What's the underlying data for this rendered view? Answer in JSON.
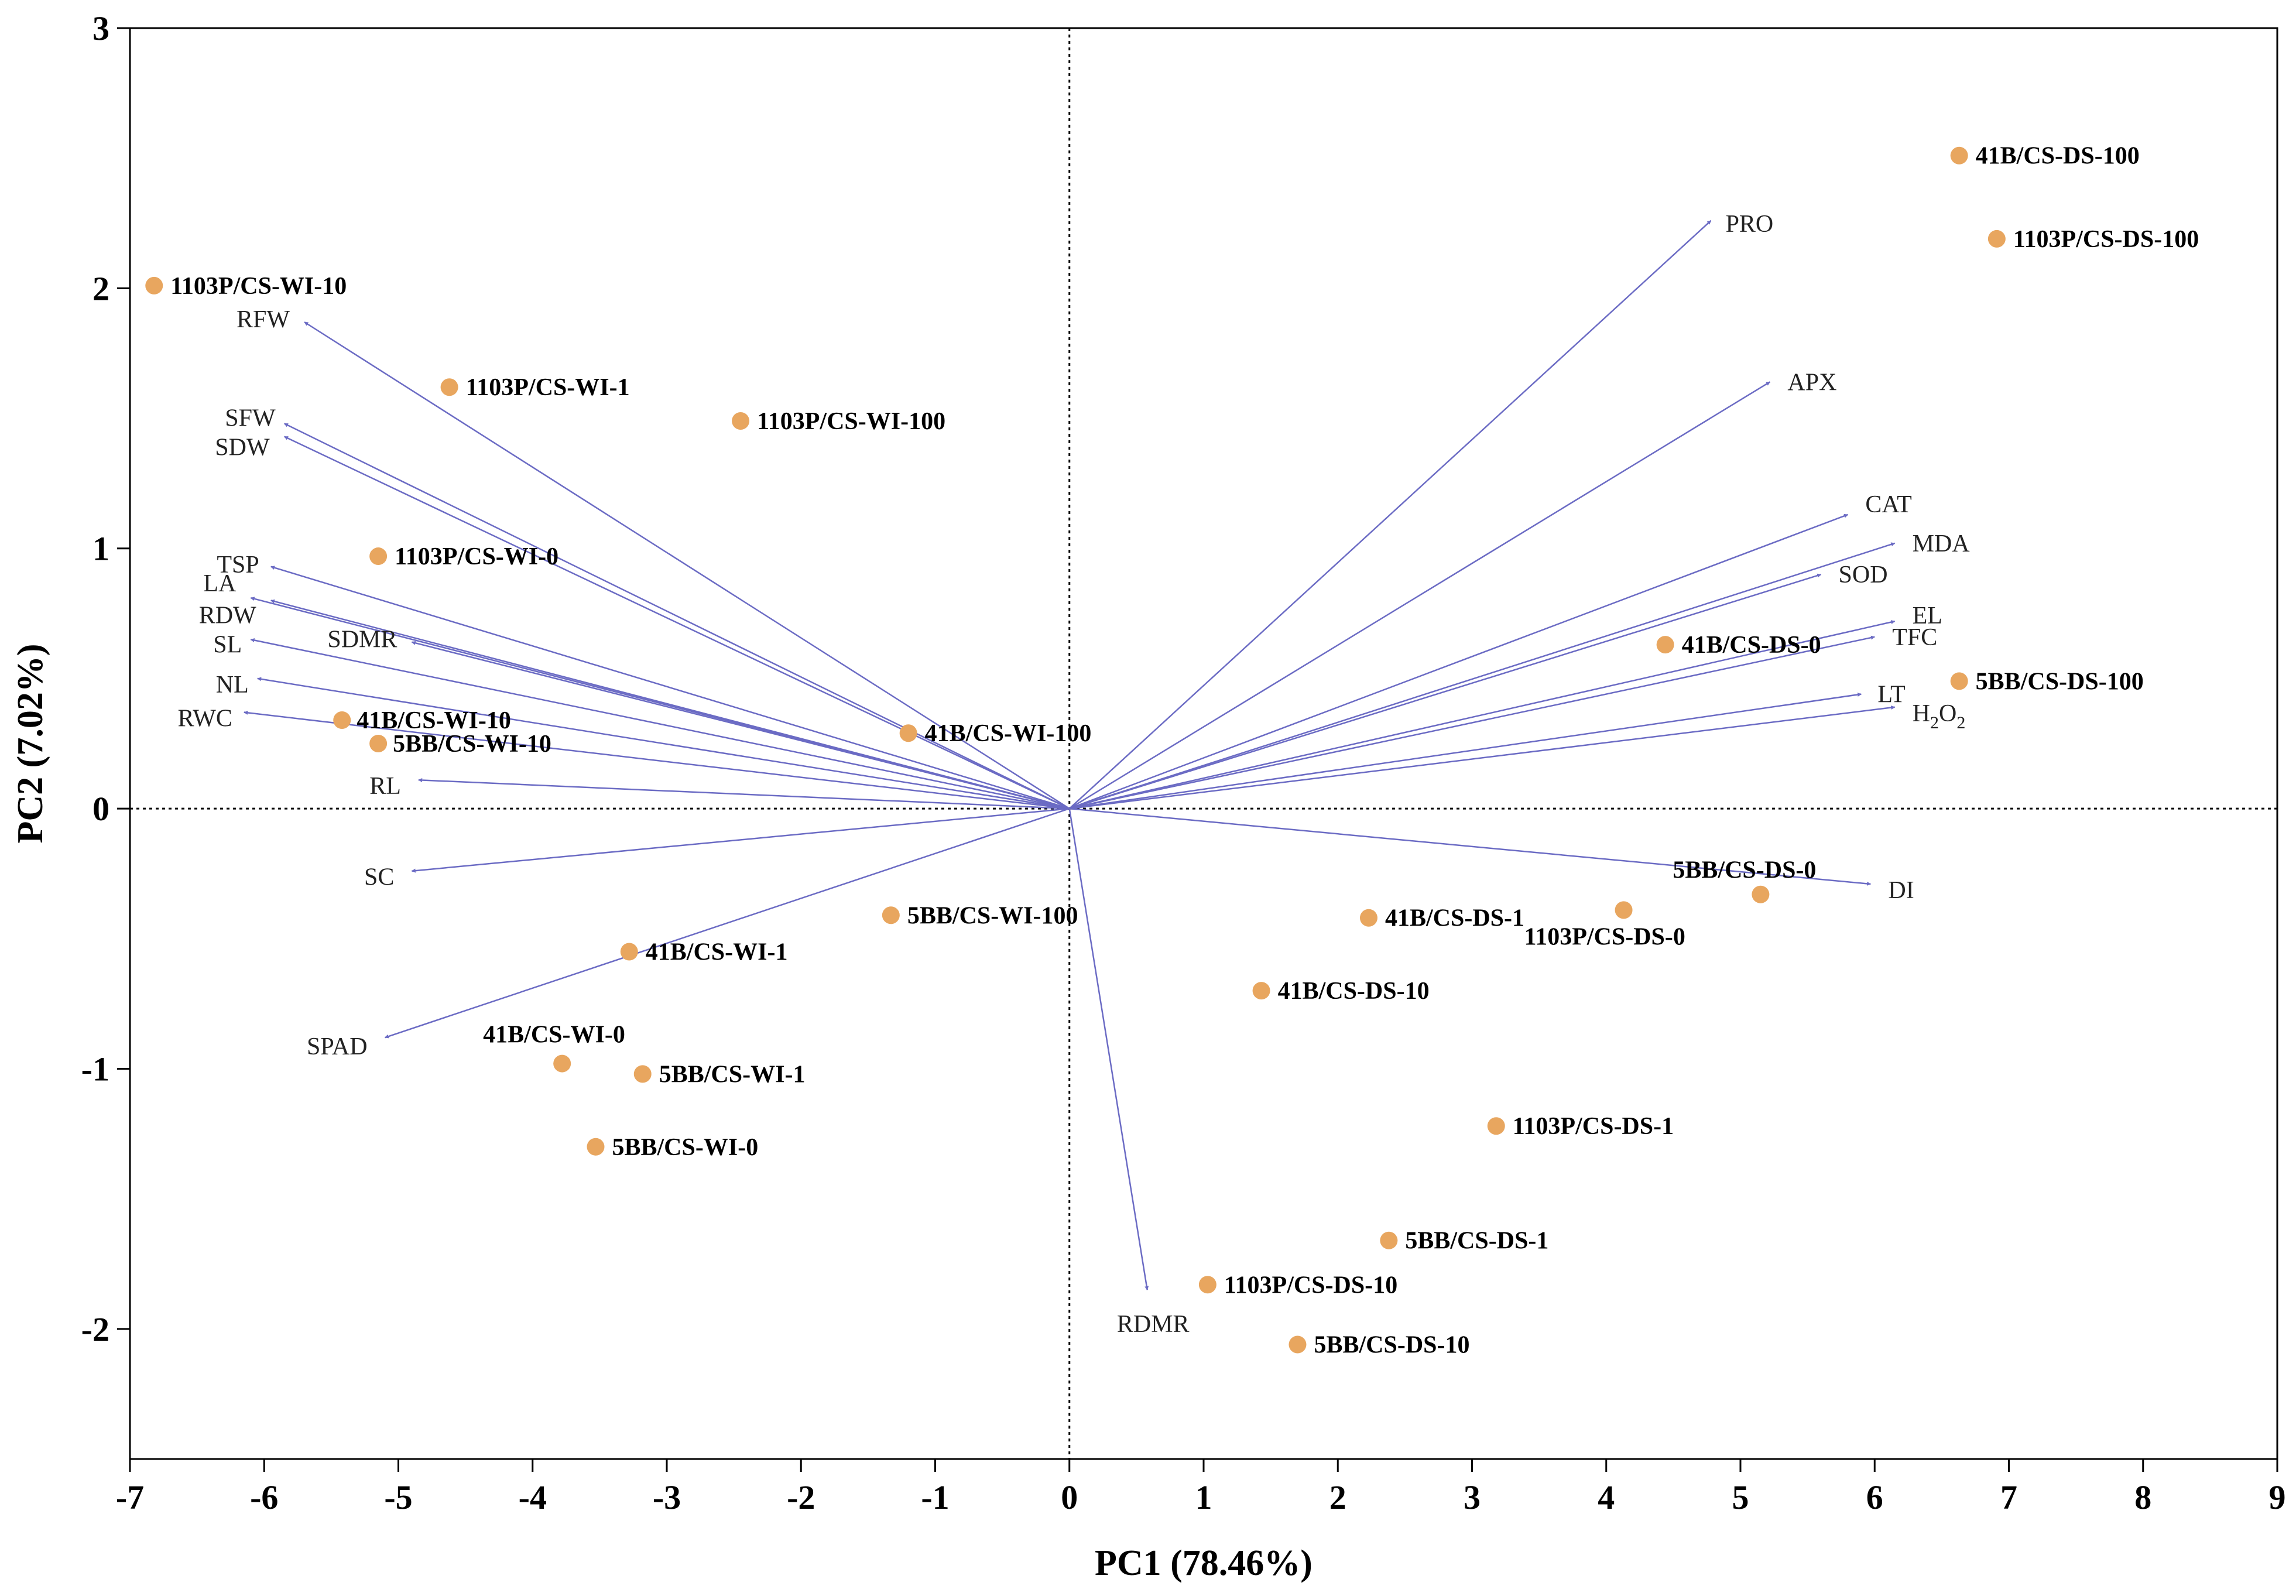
{
  "chart_data": {
    "type": "scatter",
    "subtype": "PCA biplot",
    "xlabel": "PC1 (78.46%)",
    "ylabel": "PC2 (7.02%)",
    "xlim": [
      -7,
      9
    ],
    "ylim": [
      -2.5,
      3
    ],
    "xticks": [
      -7,
      -6,
      -5,
      -4,
      -3,
      -2,
      -1,
      0,
      1,
      2,
      3,
      4,
      5,
      6,
      7,
      8,
      9
    ],
    "yticks": [
      -2,
      -1,
      0,
      1,
      2,
      3
    ],
    "grid": false,
    "zero_lines": "dotted",
    "colors": {
      "arrow": "#6b6bc4",
      "point": "#e8a65f",
      "axis": "#000000"
    },
    "loadings": [
      {
        "name": "PRO",
        "x": 4.78,
        "y": 2.26
      },
      {
        "name": "APX",
        "x": 5.22,
        "y": 1.64
      },
      {
        "name": "CAT",
        "x": 5.8,
        "y": 1.13
      },
      {
        "name": "MDA",
        "x": 6.15,
        "y": 1.02
      },
      {
        "name": "SOD",
        "x": 5.6,
        "y": 0.9
      },
      {
        "name": "EL",
        "x": 6.15,
        "y": 0.72
      },
      {
        "name": "TFC",
        "x": 6.0,
        "y": 0.66
      },
      {
        "name": "LT",
        "x": 5.9,
        "y": 0.44
      },
      {
        "name": "H2O2",
        "x": 6.15,
        "y": 0.39
      },
      {
        "name": "DI",
        "x": 5.97,
        "y": -0.29
      },
      {
        "name": "RDMR",
        "x": 0.58,
        "y": -1.85
      },
      {
        "name": "RFW",
        "x": -5.7,
        "y": 1.87
      },
      {
        "name": "SFW",
        "x": -5.85,
        "y": 1.48
      },
      {
        "name": "SDW",
        "x": -5.85,
        "y": 1.43
      },
      {
        "name": "TSP",
        "x": -5.95,
        "y": 0.93
      },
      {
        "name": "LA",
        "x": -6.1,
        "y": 0.81
      },
      {
        "name": "RDW",
        "x": -5.95,
        "y": 0.8
      },
      {
        "name": "SL",
        "x": -6.1,
        "y": 0.65
      },
      {
        "name": "SDMR",
        "x": -4.9,
        "y": 0.64
      },
      {
        "name": "NL",
        "x": -6.05,
        "y": 0.5
      },
      {
        "name": "RWC",
        "x": -6.15,
        "y": 0.37
      },
      {
        "name": "RL",
        "x": -4.85,
        "y": 0.11
      },
      {
        "name": "SC",
        "x": -4.9,
        "y": -0.24
      },
      {
        "name": "SPAD",
        "x": -5.1,
        "y": -0.88
      }
    ],
    "scores": [
      {
        "name": "41B/CS-DS-100",
        "x": 6.63,
        "y": 2.51
      },
      {
        "name": "1103P/CS-DS-100",
        "x": 6.91,
        "y": 2.19
      },
      {
        "name": "1103P/CS-WI-10",
        "x": -6.82,
        "y": 2.01
      },
      {
        "name": "1103P/CS-WI-1",
        "x": -4.62,
        "y": 1.62
      },
      {
        "name": "1103P/CS-WI-100",
        "x": -2.45,
        "y": 1.49
      },
      {
        "name": "1103P/CS-WI-0",
        "x": -5.15,
        "y": 0.97
      },
      {
        "name": "41B/CS-DS-0",
        "x": 4.44,
        "y": 0.63
      },
      {
        "name": "5BB/CS-DS-100",
        "x": 6.63,
        "y": 0.49
      },
      {
        "name": "41B/CS-WI-10",
        "x": -5.42,
        "y": 0.34
      },
      {
        "name": "5BB/CS-WI-10",
        "x": -5.15,
        "y": 0.25
      },
      {
        "name": "41B/CS-WI-100",
        "x": -1.2,
        "y": 0.29
      },
      {
        "name": "5BB/CS-DS-0",
        "x": 5.15,
        "y": -0.33
      },
      {
        "name": "1103P/CS-DS-0",
        "x": 4.13,
        "y": -0.39
      },
      {
        "name": "41B/CS-DS-1",
        "x": 2.23,
        "y": -0.42
      },
      {
        "name": "5BB/CS-WI-100",
        "x": -1.33,
        "y": -0.41
      },
      {
        "name": "41B/CS-WI-1",
        "x": -3.28,
        "y": -0.55
      },
      {
        "name": "41B/CS-DS-10",
        "x": 1.43,
        "y": -0.7
      },
      {
        "name": "41B/CS-WI-0",
        "x": -3.78,
        "y": -0.98
      },
      {
        "name": "5BB/CS-WI-1",
        "x": -3.18,
        "y": -1.02
      },
      {
        "name": "5BB/CS-WI-0",
        "x": -3.53,
        "y": -1.3
      },
      {
        "name": "1103P/CS-DS-1",
        "x": 3.18,
        "y": -1.22
      },
      {
        "name": "5BB/CS-DS-1",
        "x": 2.38,
        "y": -1.66
      },
      {
        "name": "1103P/CS-DS-10",
        "x": 1.03,
        "y": -1.83
      },
      {
        "name": "5BB/CS-DS-10",
        "x": 1.7,
        "y": -2.06
      }
    ]
  }
}
